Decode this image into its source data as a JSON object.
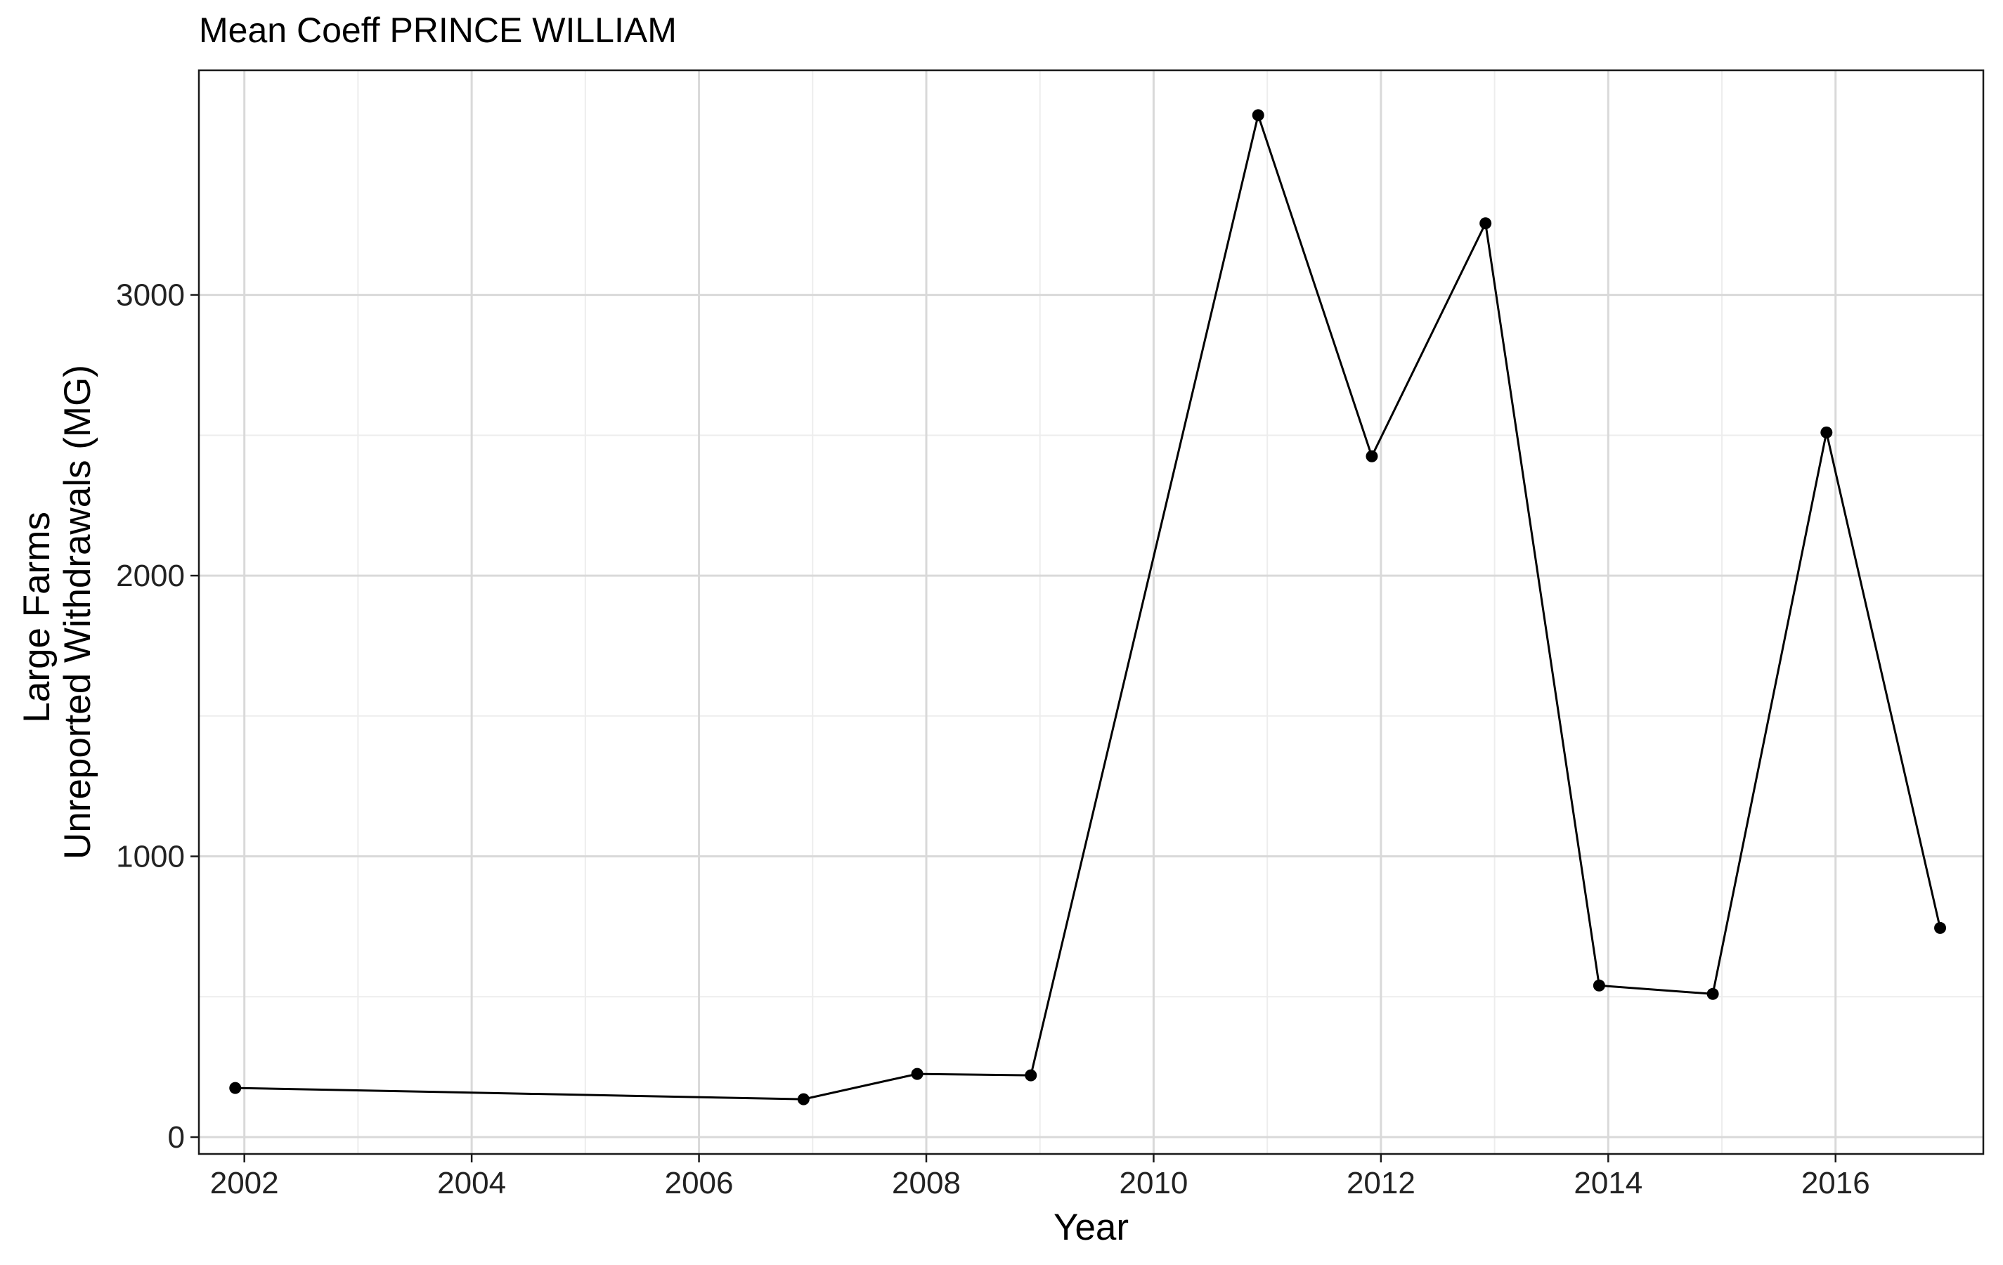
{
  "chart_data": {
    "type": "line",
    "title": "Mean Coeff PRINCE WILLIAM",
    "xlabel": "Year",
    "ylabel_lines": [
      "Large Farms",
      "Unreported Withdrawals (MG)"
    ],
    "xlim": [
      2001.6,
      2017.3
    ],
    "ylim": [
      -60,
      3800
    ],
    "x_ticks": [
      2002,
      2004,
      2006,
      2008,
      2010,
      2012,
      2014,
      2016
    ],
    "x_tick_labels": [
      "2002",
      "2004",
      "2006",
      "2008",
      "2010",
      "2012",
      "2014",
      "2016"
    ],
    "y_ticks": [
      0,
      1000,
      2000,
      3000
    ],
    "y_tick_labels": [
      "0",
      "1000",
      "2000",
      "3000"
    ],
    "grid": true,
    "legend": false,
    "series": [
      {
        "x": [
          2001.92,
          2006.92,
          2007.92,
          2008.92,
          2010.92,
          2011.92,
          2012.92,
          2013.92,
          2014.92,
          2015.92,
          2016.92
        ],
        "y": [
          175,
          135,
          225,
          220,
          3640,
          2425,
          3255,
          540,
          510,
          2510,
          745
        ],
        "color": "#000000"
      }
    ]
  }
}
